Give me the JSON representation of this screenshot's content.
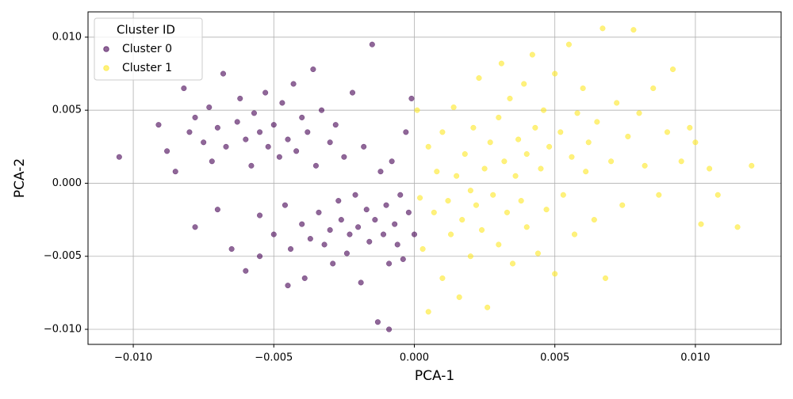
{
  "chart_data": {
    "type": "scatter",
    "xlabel": "PCA-1",
    "ylabel": "PCA-2",
    "xlim": [
      -0.01161,
      0.01305
    ],
    "ylim": [
      -0.01103,
      0.01173
    ],
    "xticks": [
      {
        "value": -0.01,
        "label": "−0.010"
      },
      {
        "value": -0.005,
        "label": "−0.005"
      },
      {
        "value": 0,
        "label": "0.000"
      },
      {
        "value": 0.005,
        "label": "0.005"
      },
      {
        "value": 0.01,
        "label": "0.010"
      }
    ],
    "yticks": [
      {
        "value": -0.01,
        "label": "−0.010"
      },
      {
        "value": -0.005,
        "label": "−0.005"
      },
      {
        "value": 0,
        "label": "0.000"
      },
      {
        "value": 0.005,
        "label": "0.005"
      },
      {
        "value": 0.01,
        "label": "0.010"
      }
    ],
    "grid": true,
    "legend_title": "Cluster ID",
    "legend_loc": "upper-left",
    "series": [
      {
        "name": "Cluster 0",
        "color": "#440154",
        "x": [
          -0.0105,
          -0.0091,
          -0.0088,
          -0.0085,
          -0.0082,
          -0.008,
          -0.0078,
          -0.0075,
          -0.0073,
          -0.0072,
          -0.007,
          -0.0068,
          -0.0067,
          -0.0065,
          -0.0063,
          -0.0062,
          -0.006,
          -0.006,
          -0.0058,
          -0.0057,
          -0.0055,
          -0.0055,
          -0.0053,
          -0.0052,
          -0.005,
          -0.005,
          -0.0048,
          -0.0047,
          -0.0046,
          -0.0045,
          -0.0044,
          -0.0043,
          -0.0042,
          -0.004,
          -0.004,
          -0.0039,
          -0.0038,
          -0.0037,
          -0.0036,
          -0.0035,
          -0.0034,
          -0.0033,
          -0.0032,
          -0.003,
          -0.003,
          -0.0029,
          -0.0028,
          -0.0027,
          -0.0026,
          -0.0025,
          -0.0024,
          -0.0023,
          -0.0022,
          -0.0021,
          -0.002,
          -0.0019,
          -0.0018,
          -0.0017,
          -0.0016,
          -0.0015,
          -0.0014,
          -0.0013,
          -0.0012,
          -0.0011,
          -0.001,
          -0.0009,
          -0.0009,
          -0.0008,
          -0.0007,
          -0.0006,
          -0.0005,
          -0.0004,
          -0.0003,
          -0.0002,
          -0.0001,
          0.0,
          -0.0045,
          -0.0055,
          -0.0078,
          -0.007
        ],
        "y": [
          0.0018,
          0.004,
          0.0022,
          0.0008,
          0.0065,
          0.0035,
          0.0045,
          0.0028,
          0.0052,
          0.0015,
          0.0038,
          0.0075,
          0.0025,
          -0.0045,
          0.0042,
          0.0058,
          0.003,
          -0.006,
          0.0012,
          0.0048,
          0.0035,
          -0.0022,
          0.0062,
          0.0025,
          0.004,
          -0.0035,
          0.0018,
          0.0055,
          -0.0015,
          0.003,
          -0.0045,
          0.0068,
          0.0022,
          -0.0028,
          0.0045,
          -0.0065,
          0.0035,
          -0.0038,
          0.0078,
          0.0012,
          -0.002,
          0.005,
          -0.0042,
          0.0028,
          -0.0032,
          -0.0055,
          0.004,
          -0.0012,
          -0.0025,
          0.0018,
          -0.0048,
          -0.0035,
          0.0062,
          -0.0008,
          -0.003,
          -0.0068,
          0.0025,
          -0.0018,
          -0.004,
          0.0095,
          -0.0025,
          -0.0095,
          0.0008,
          -0.0035,
          -0.0015,
          -0.0055,
          -0.01,
          0.0015,
          -0.0028,
          -0.0042,
          -0.0008,
          -0.0052,
          0.0035,
          -0.002,
          0.0058,
          -0.0035,
          -0.007,
          -0.005,
          -0.003,
          -0.0018
        ]
      },
      {
        "name": "Cluster 1",
        "color": "#fde725",
        "x": [
          0.0001,
          0.0002,
          0.0003,
          0.0005,
          0.0005,
          0.0007,
          0.0008,
          0.001,
          0.001,
          0.0012,
          0.0013,
          0.0014,
          0.0015,
          0.0016,
          0.0017,
          0.0018,
          0.002,
          0.002,
          0.0021,
          0.0022,
          0.0023,
          0.0024,
          0.0025,
          0.0026,
          0.0027,
          0.0028,
          0.003,
          0.003,
          0.0031,
          0.0032,
          0.0033,
          0.0034,
          0.0035,
          0.0036,
          0.0037,
          0.0038,
          0.0039,
          0.004,
          0.004,
          0.0042,
          0.0043,
          0.0044,
          0.0045,
          0.0046,
          0.0047,
          0.0048,
          0.005,
          0.005,
          0.0052,
          0.0053,
          0.0055,
          0.0056,
          0.0057,
          0.0058,
          0.006,
          0.0061,
          0.0062,
          0.0064,
          0.0065,
          0.0067,
          0.0068,
          0.007,
          0.0072,
          0.0074,
          0.0076,
          0.0078,
          0.008,
          0.0082,
          0.0085,
          0.0087,
          0.009,
          0.0092,
          0.0095,
          0.0098,
          0.01,
          0.0102,
          0.0105,
          0.0108,
          0.0115,
          0.012
        ],
        "y": [
          0.005,
          -0.001,
          -0.0045,
          0.0025,
          -0.0088,
          -0.002,
          0.0008,
          -0.0065,
          0.0035,
          -0.0012,
          -0.0035,
          0.0052,
          0.0005,
          -0.0078,
          -0.0025,
          0.002,
          -0.0005,
          -0.005,
          0.0038,
          -0.0015,
          0.0072,
          -0.0032,
          0.001,
          -0.0085,
          0.0028,
          -0.0008,
          0.0045,
          -0.0042,
          0.0082,
          0.0015,
          -0.002,
          0.0058,
          -0.0055,
          0.0005,
          0.003,
          -0.0012,
          0.0068,
          0.002,
          -0.003,
          0.0088,
          0.0038,
          -0.0048,
          0.001,
          0.005,
          -0.0018,
          0.0025,
          0.0075,
          -0.0062,
          0.0035,
          -0.0008,
          0.0095,
          0.0018,
          -0.0035,
          0.0048,
          0.0065,
          0.0008,
          0.0028,
          -0.0025,
          0.0042,
          0.0106,
          -0.0065,
          0.0015,
          0.0055,
          -0.0015,
          0.0032,
          0.0105,
          0.0048,
          0.0012,
          0.0065,
          -0.0008,
          0.0035,
          0.0078,
          0.0015,
          0.0038,
          0.0028,
          -0.0028,
          0.001,
          -0.0008,
          -0.003,
          0.0012
        ]
      }
    ]
  }
}
